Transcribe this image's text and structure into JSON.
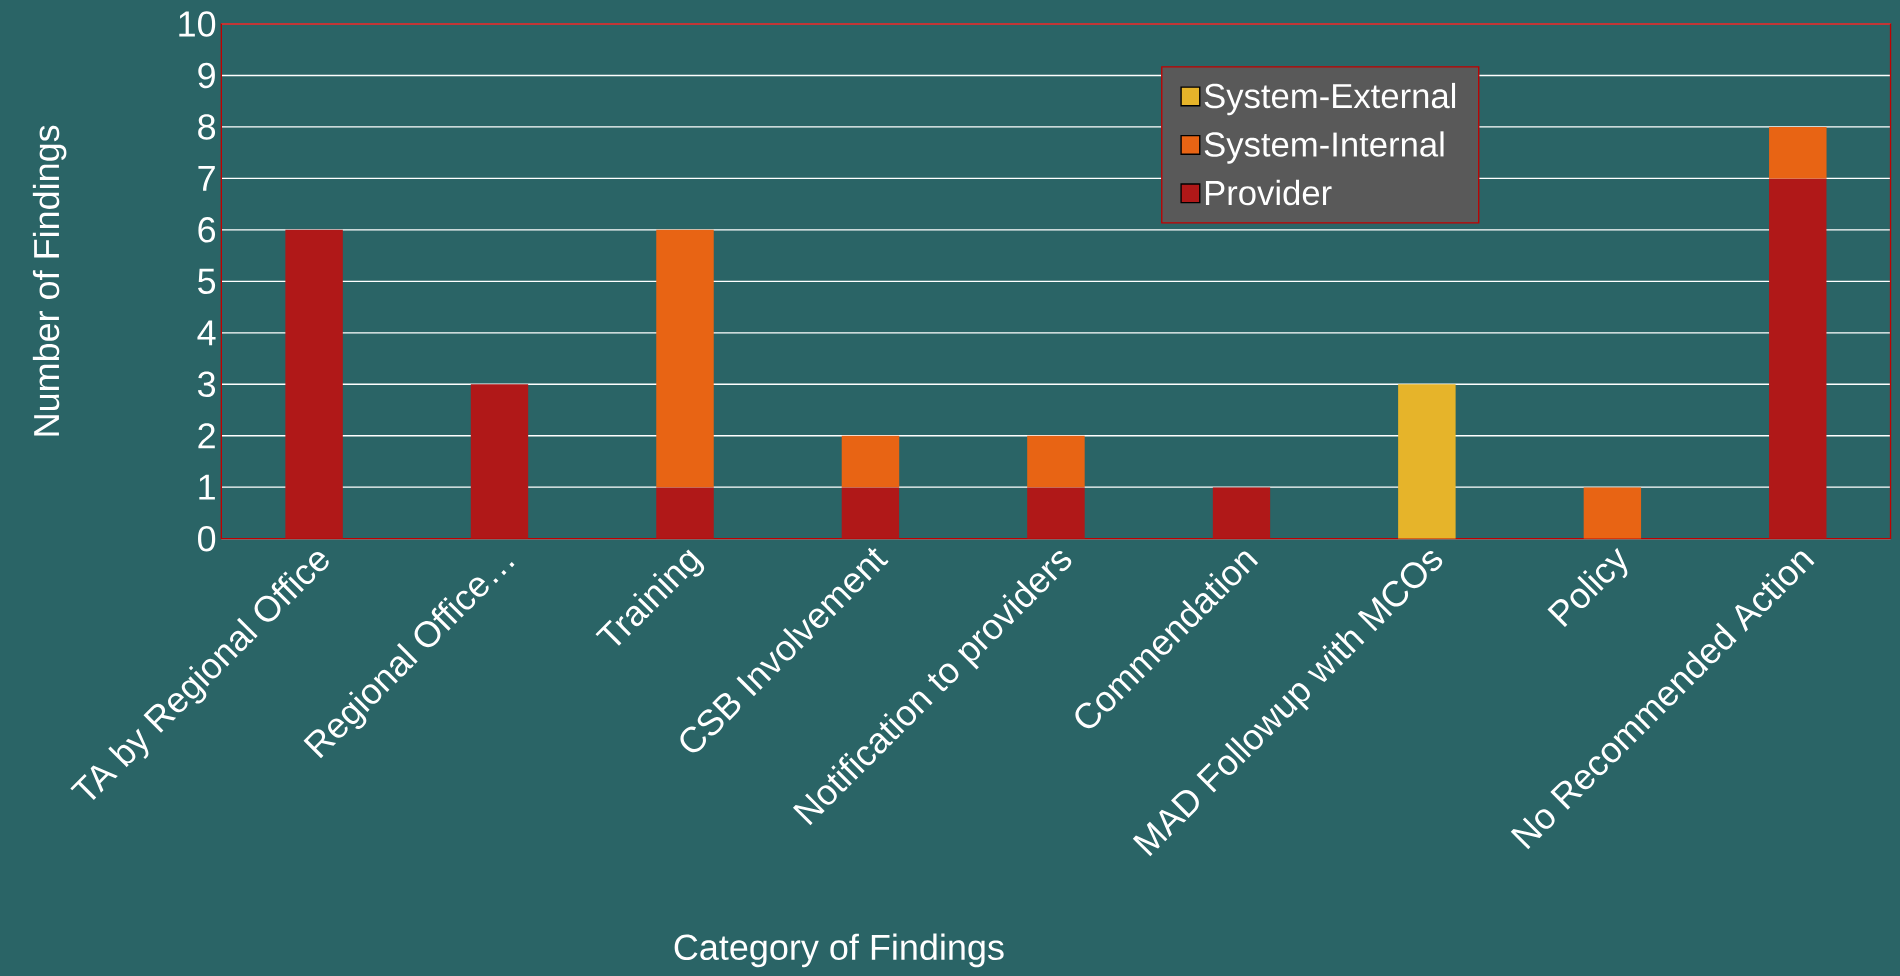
{
  "chart_data": {
    "type": "bar",
    "stacked": true,
    "xlabel": "Category of Findings",
    "ylabel": "Number of Findings",
    "categories": [
      "TA by Regional Office",
      "Regional Office…",
      "Training",
      "CSB Involvement",
      "Notification to providers",
      "Commendation",
      "MAD Followup with MCOs",
      "Policy",
      "No Recommended Action"
    ],
    "series": [
      {
        "name": "Provider",
        "color": "#b01818",
        "values": [
          6,
          3,
          1,
          1,
          1,
          1,
          0,
          0,
          7
        ]
      },
      {
        "name": "System-Internal",
        "color": "#e86414",
        "values": [
          0,
          0,
          5,
          1,
          1,
          0,
          0,
          1,
          1
        ]
      },
      {
        "name": "System-External",
        "color": "#e6b42a",
        "values": [
          0,
          0,
          0,
          0,
          0,
          0,
          3,
          0,
          0
        ]
      }
    ],
    "ylim": [
      0,
      10
    ],
    "yticks": [
      0,
      1,
      2,
      3,
      4,
      5,
      6,
      7,
      8,
      9,
      10
    ],
    "grid": "y",
    "legend": "top right"
  }
}
